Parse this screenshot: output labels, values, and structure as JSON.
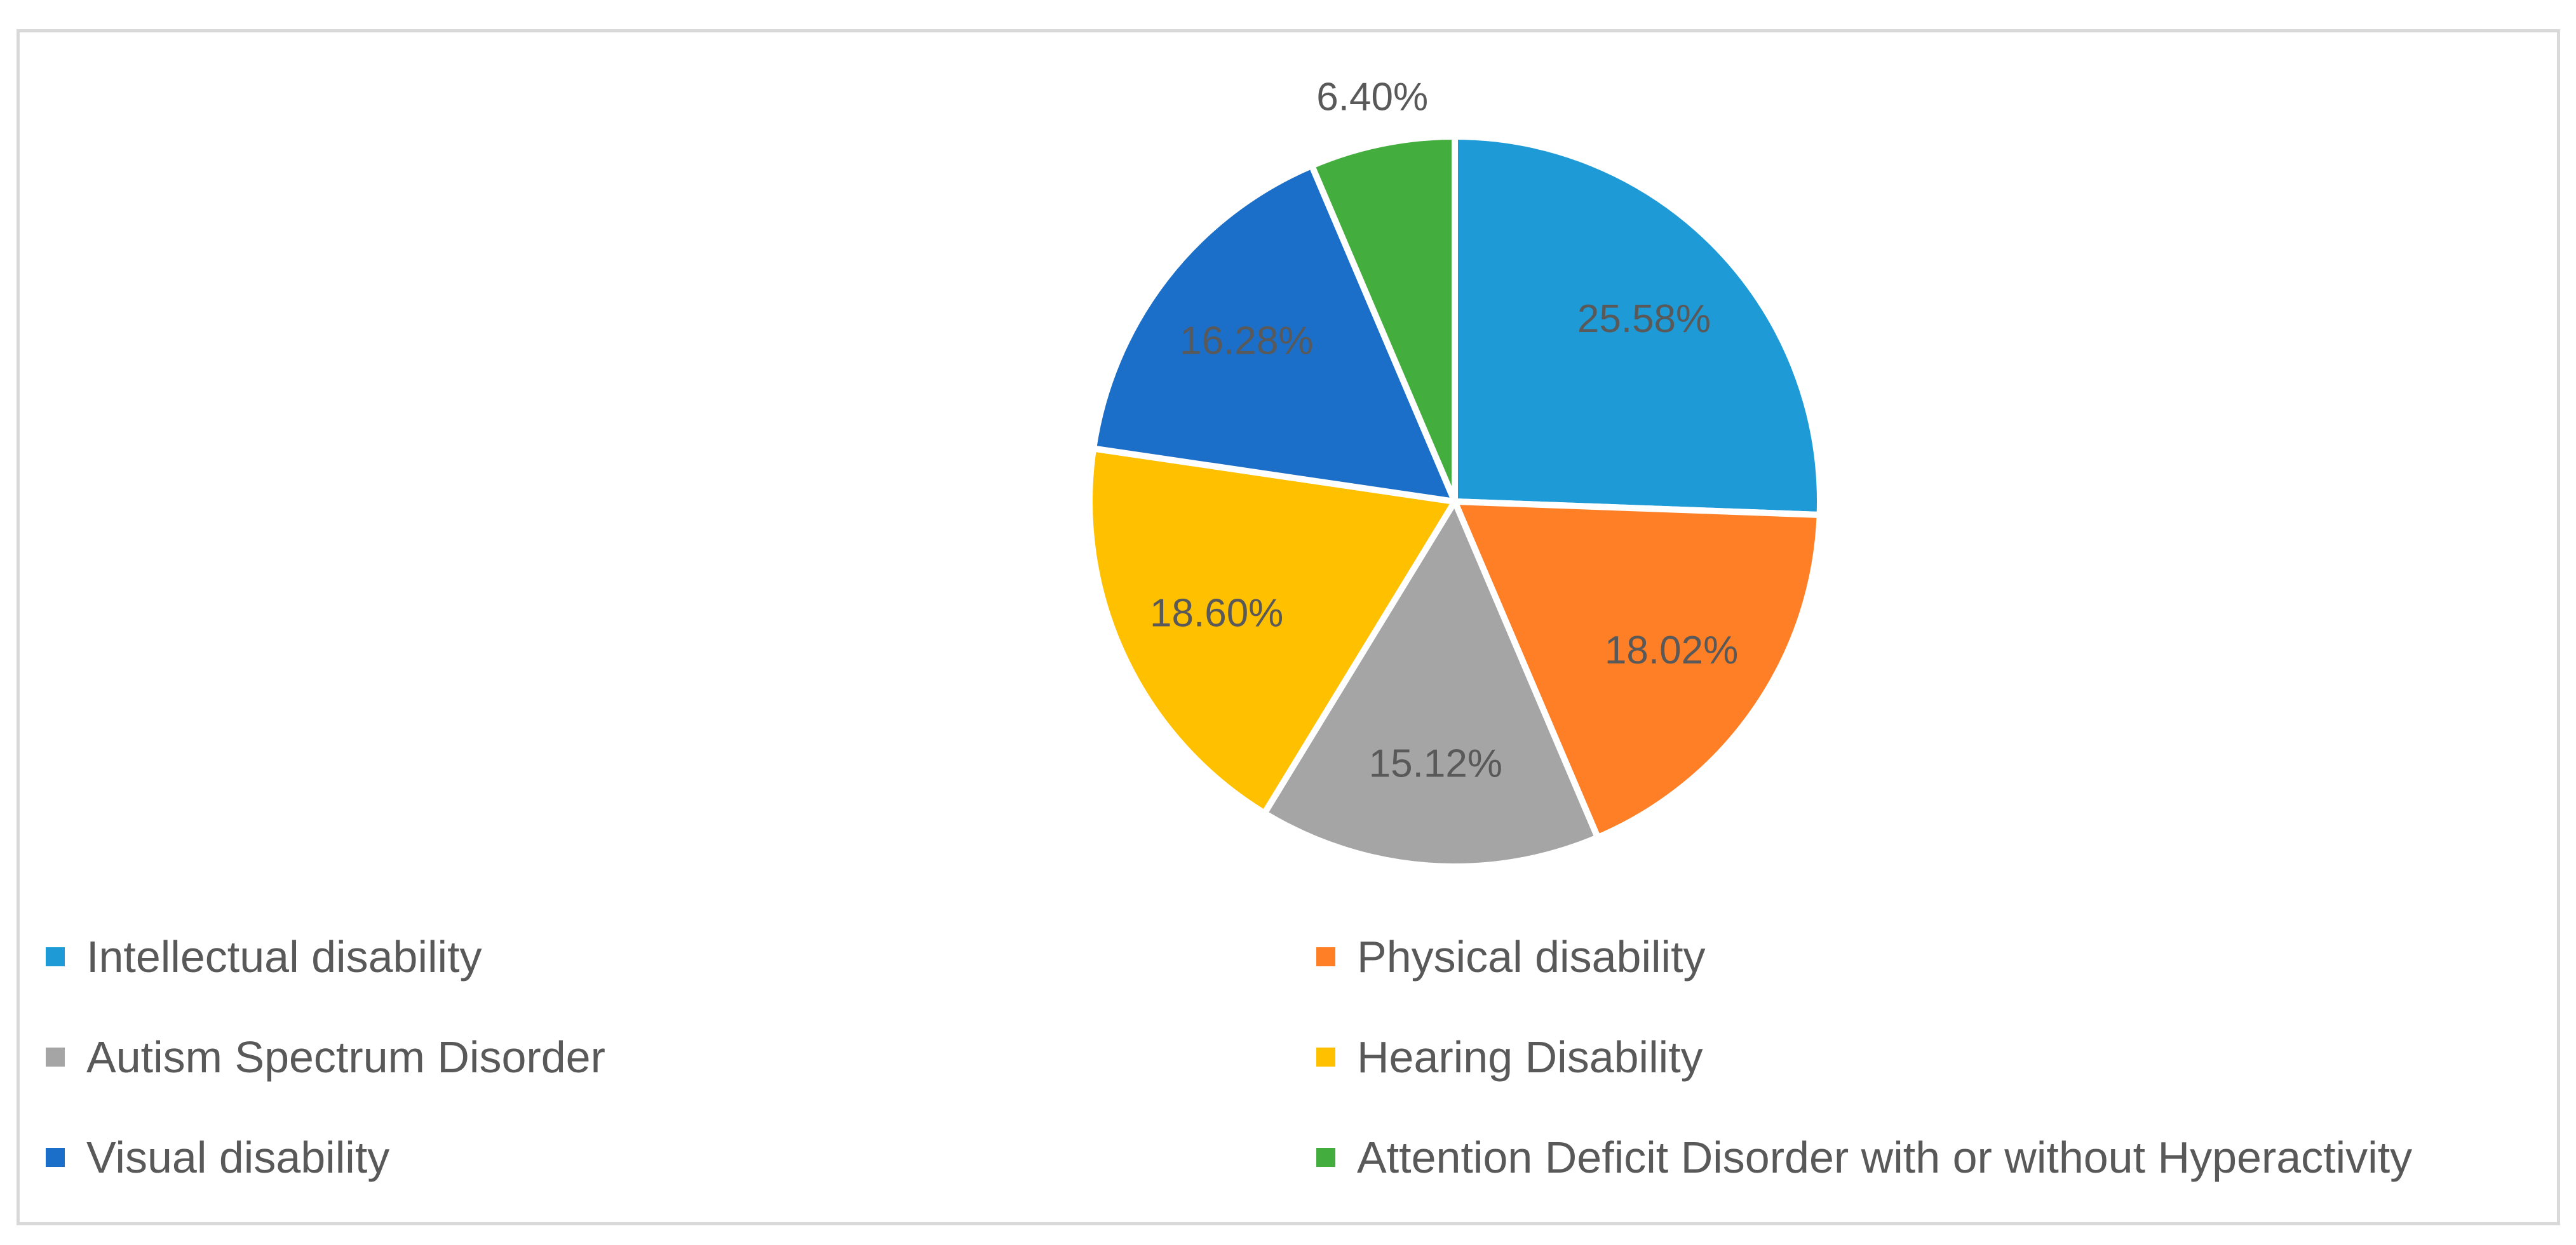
{
  "chart_data": {
    "type": "pie",
    "title": "",
    "legend_position": "bottom",
    "slices": [
      {
        "label": "Intellectual disability",
        "value": 25.58,
        "display": "25.58%",
        "color": "#1E9BD7"
      },
      {
        "label": "Physical disability",
        "value": 18.02,
        "display": "18.02%",
        "color": "#FF7F27"
      },
      {
        "label": "Autism Spectrum Disorder",
        "value": 15.12,
        "display": "15.12%",
        "color": "#A5A5A5"
      },
      {
        "label": "Hearing Disability",
        "value": 18.6,
        "display": "18.60%",
        "color": "#FFC000"
      },
      {
        "label": "Visual disability",
        "value": 16.28,
        "display": "16.28%",
        "color": "#1B6FC8"
      },
      {
        "label": "Attention Deficit Disorder with or without Hyperactivity",
        "value": 6.4,
        "display": "6.40%",
        "color": "#43AE3E"
      }
    ]
  }
}
